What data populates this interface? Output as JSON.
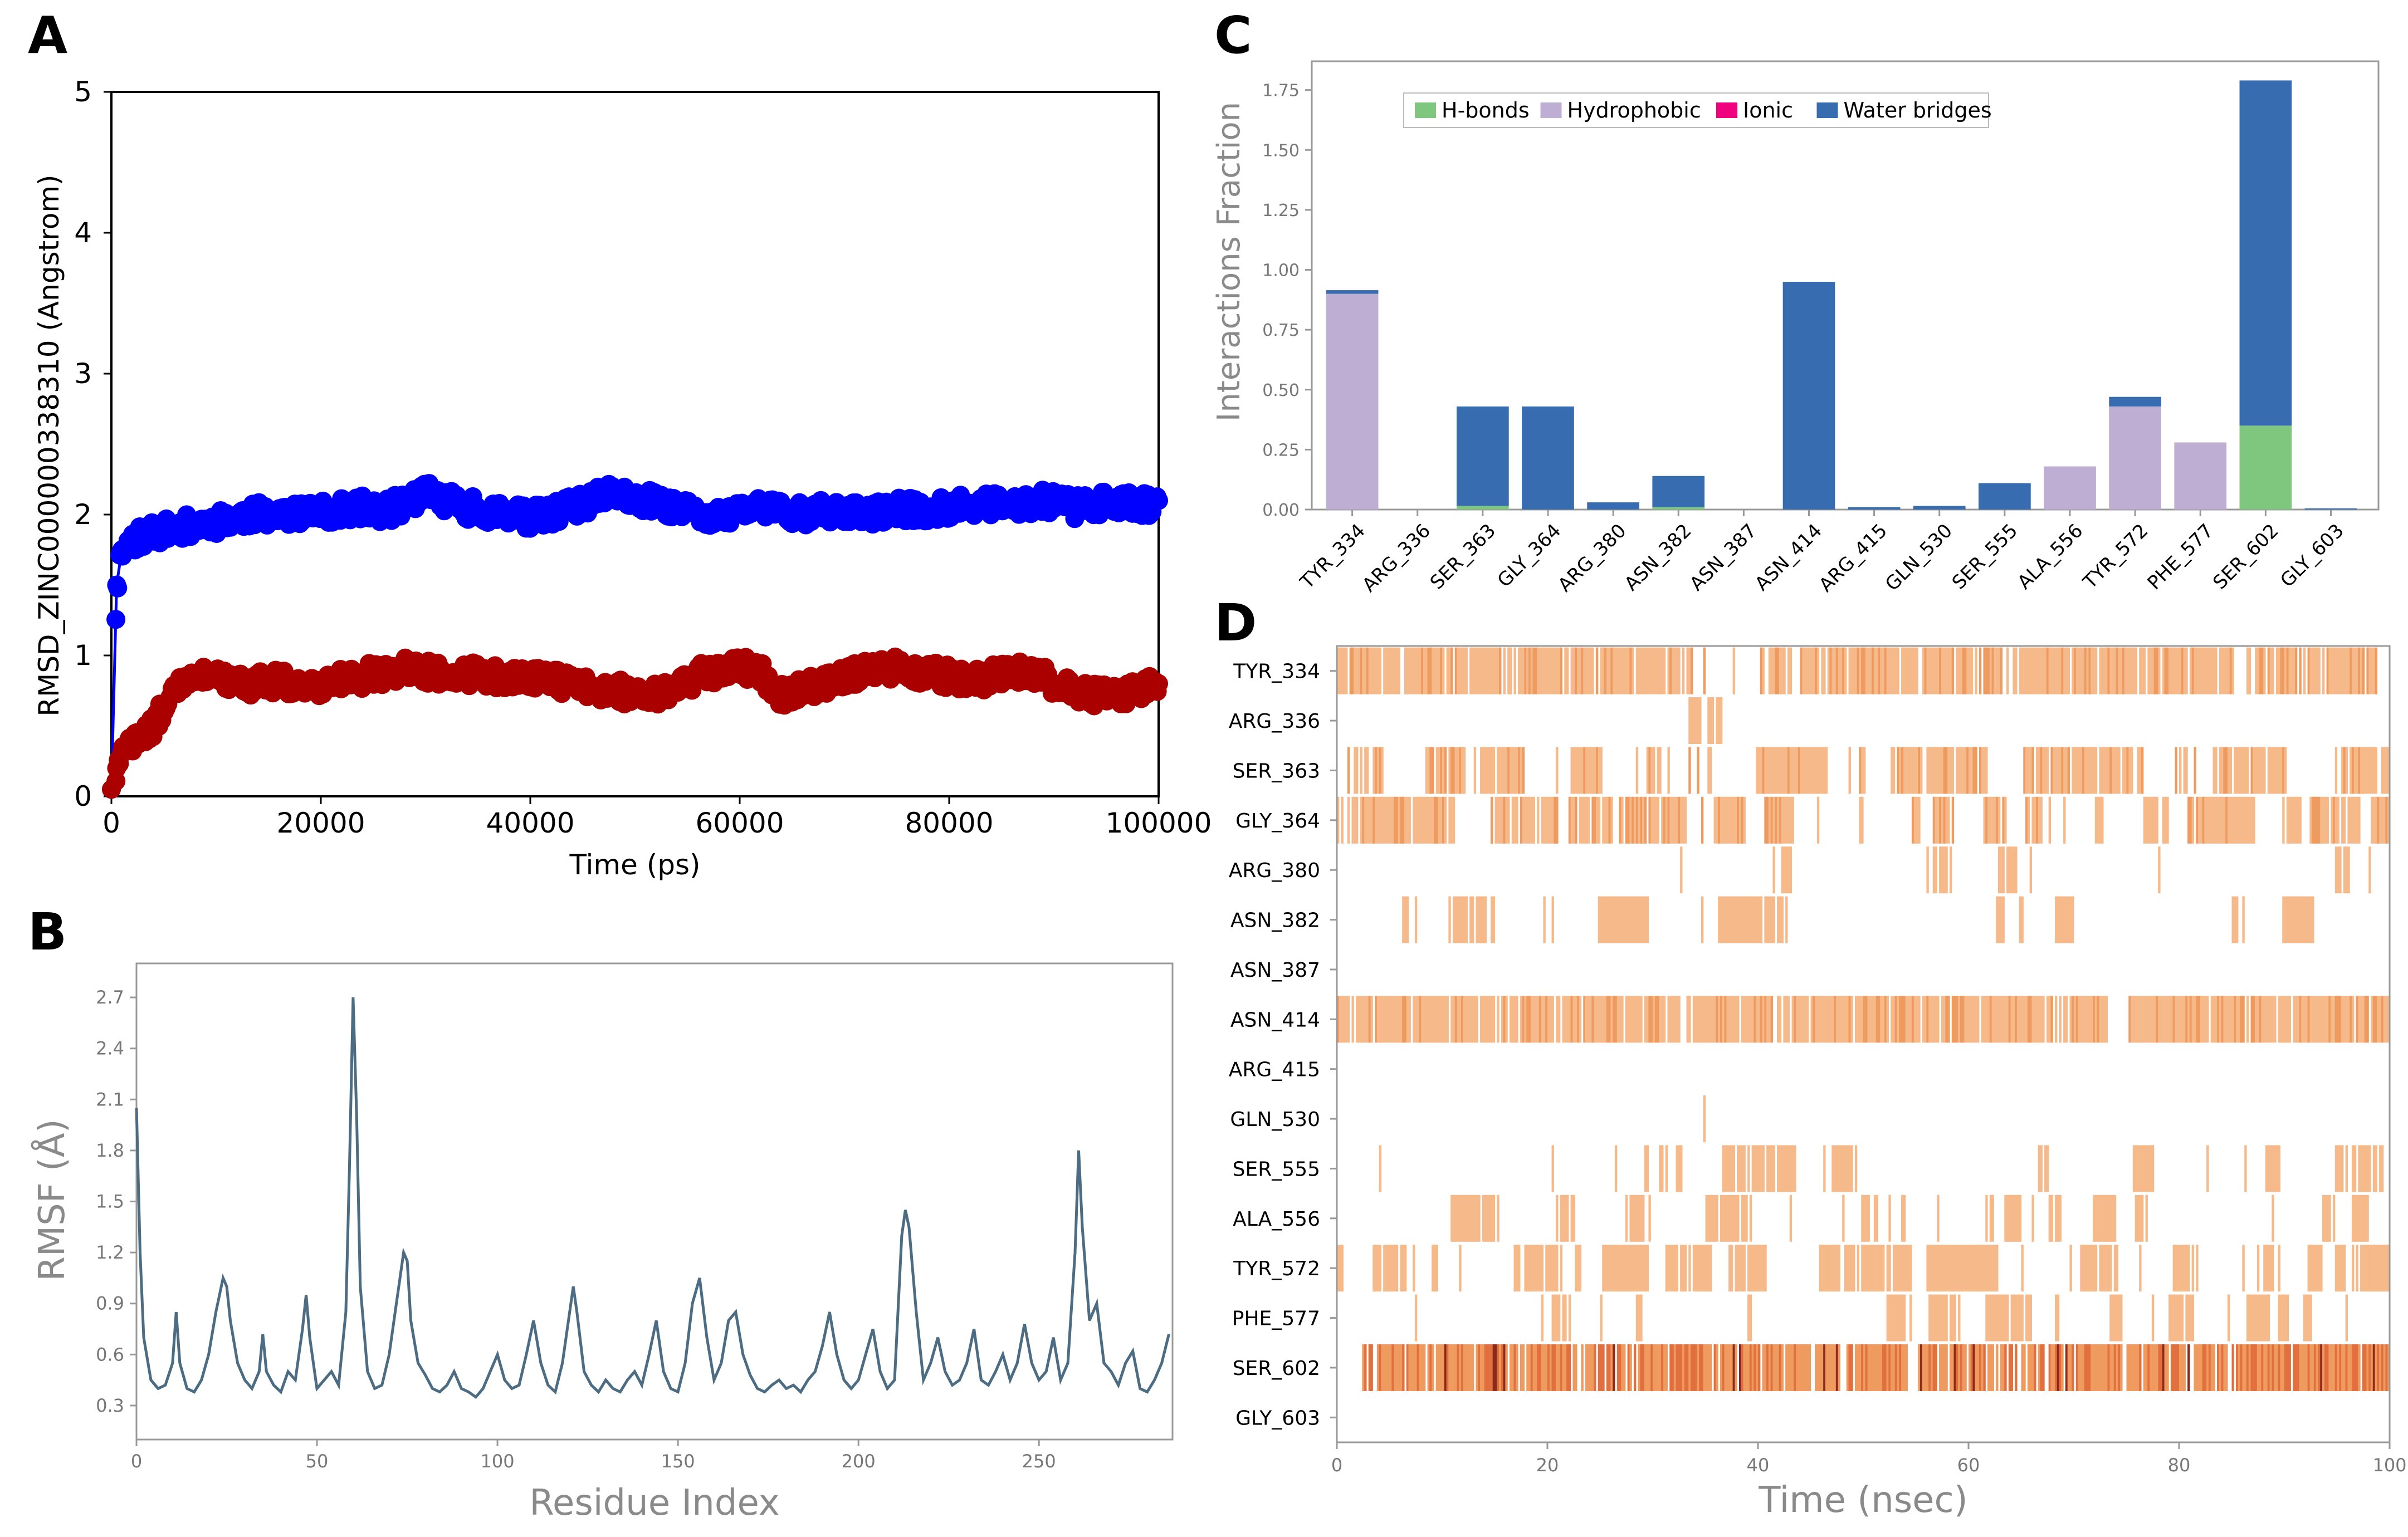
{
  "figure": {
    "letters": [
      "A",
      "B",
      "C",
      "D"
    ]
  },
  "chart_data": [
    {
      "panel": "A",
      "type": "scatter",
      "title": "",
      "xlabel": "Time (ps)",
      "ylabel": "RMSD_ZINC000000338310 (Angstrom)",
      "xlim": [
        0,
        100000
      ],
      "ylim": [
        0,
        5
      ],
      "xticks": [
        0,
        20000,
        40000,
        60000,
        80000,
        100000
      ],
      "yticks": [
        0,
        1,
        2,
        3,
        4,
        5
      ],
      "grid": false,
      "series": [
        {
          "name": "blue",
          "color": "#0000ff",
          "x": [
            0,
            500,
            1000,
            2000,
            3000,
            4000,
            5000,
            6000,
            8000,
            10000,
            12000,
            14000,
            16000,
            18000,
            20000,
            22000,
            24000,
            26000,
            28000,
            30000,
            32000,
            34000,
            36000,
            38000,
            40000,
            42000,
            44000,
            46000,
            48000,
            50000,
            52000,
            54000,
            56000,
            58000,
            60000,
            62000,
            64000,
            66000,
            68000,
            70000,
            72000,
            74000,
            76000,
            78000,
            80000,
            82000,
            84000,
            86000,
            88000,
            90000,
            92000,
            94000,
            96000,
            98000,
            100000
          ],
          "y": [
            0.05,
            1.5,
            1.75,
            1.82,
            1.85,
            1.87,
            1.88,
            1.9,
            1.93,
            1.95,
            1.98,
            2.0,
            2.02,
            2.0,
            2.01,
            2.03,
            2.05,
            2.02,
            2.08,
            2.15,
            2.1,
            2.05,
            2.02,
            2.0,
            1.98,
            2.0,
            2.05,
            2.1,
            2.15,
            2.12,
            2.08,
            2.05,
            2.0,
            1.98,
            2.02,
            2.05,
            2.03,
            2.0,
            2.02,
            2.03,
            2.0,
            2.02,
            2.04,
            2.02,
            2.05,
            2.08,
            2.07,
            2.05,
            2.08,
            2.1,
            2.05,
            2.08,
            2.1,
            2.05,
            2.1
          ]
        },
        {
          "name": "red",
          "color": "#aa0000",
          "x": [
            0,
            500,
            1000,
            2000,
            3000,
            4000,
            5000,
            6000,
            7000,
            8000,
            10000,
            12000,
            14000,
            16000,
            18000,
            20000,
            22000,
            24000,
            26000,
            28000,
            30000,
            32000,
            34000,
            36000,
            38000,
            40000,
            42000,
            44000,
            46000,
            48000,
            50000,
            52000,
            54000,
            56000,
            58000,
            60000,
            62000,
            64000,
            66000,
            68000,
            70000,
            72000,
            74000,
            76000,
            78000,
            80000,
            82000,
            84000,
            86000,
            88000,
            90000,
            92000,
            94000,
            96000,
            98000,
            100000
          ],
          "y": [
            0.05,
            0.2,
            0.3,
            0.35,
            0.4,
            0.5,
            0.65,
            0.78,
            0.85,
            0.85,
            0.83,
            0.78,
            0.8,
            0.82,
            0.8,
            0.78,
            0.83,
            0.85,
            0.88,
            0.9,
            0.88,
            0.85,
            0.87,
            0.85,
            0.83,
            0.85,
            0.82,
            0.8,
            0.78,
            0.75,
            0.73,
            0.72,
            0.75,
            0.85,
            0.9,
            0.92,
            0.88,
            0.72,
            0.75,
            0.8,
            0.85,
            0.9,
            0.92,
            0.9,
            0.88,
            0.85,
            0.82,
            0.85,
            0.9,
            0.88,
            0.8,
            0.75,
            0.72,
            0.7,
            0.75,
            0.8
          ]
        }
      ]
    },
    {
      "panel": "B",
      "type": "line",
      "title": "",
      "xlabel": "Residue Index",
      "ylabel": "RMSF (Å)",
      "xlim": [
        0,
        287
      ],
      "ylim": [
        0.1,
        2.9
      ],
      "xticks": [
        0,
        50,
        100,
        150,
        200,
        250
      ],
      "yticks": [
        0.3,
        0.6,
        0.9,
        1.2,
        1.5,
        1.8,
        2.1,
        2.4,
        2.7
      ],
      "color": "#4b6c82",
      "x": [
        0,
        1,
        2,
        4,
        6,
        8,
        10,
        11,
        12,
        14,
        16,
        18,
        20,
        22,
        24,
        25,
        26,
        28,
        30,
        32,
        34,
        35,
        36,
        38,
        40,
        42,
        44,
        46,
        47,
        48,
        50,
        52,
        54,
        56,
        58,
        59,
        60,
        61,
        62,
        64,
        66,
        68,
        70,
        72,
        74,
        75,
        76,
        78,
        80,
        82,
        84,
        86,
        88,
        90,
        92,
        94,
        96,
        98,
        100,
        102,
        104,
        106,
        108,
        110,
        112,
        114,
        116,
        118,
        120,
        121,
        122,
        124,
        126,
        128,
        130,
        132,
        134,
        136,
        138,
        140,
        142,
        144,
        146,
        148,
        150,
        152,
        154,
        156,
        158,
        160,
        162,
        164,
        166,
        168,
        170,
        172,
        174,
        176,
        178,
        180,
        182,
        184,
        186,
        188,
        190,
        192,
        194,
        196,
        198,
        200,
        202,
        204,
        206,
        208,
        210,
        212,
        213,
        214,
        216,
        218,
        220,
        222,
        224,
        226,
        228,
        230,
        232,
        234,
        236,
        238,
        240,
        242,
        244,
        246,
        248,
        250,
        252,
        254,
        256,
        258,
        260,
        261,
        262,
        264,
        266,
        268,
        270,
        272,
        274,
        276,
        278,
        280,
        282,
        284,
        286
      ],
      "y": [
        2.05,
        1.2,
        0.7,
        0.45,
        0.4,
        0.42,
        0.55,
        0.85,
        0.55,
        0.4,
        0.38,
        0.45,
        0.6,
        0.85,
        1.05,
        1.0,
        0.8,
        0.55,
        0.45,
        0.4,
        0.5,
        0.72,
        0.5,
        0.42,
        0.38,
        0.5,
        0.45,
        0.75,
        0.95,
        0.7,
        0.4,
        0.45,
        0.5,
        0.42,
        0.85,
        1.7,
        2.7,
        2.0,
        1.0,
        0.5,
        0.4,
        0.42,
        0.6,
        0.9,
        1.2,
        1.15,
        0.8,
        0.55,
        0.48,
        0.4,
        0.38,
        0.42,
        0.5,
        0.4,
        0.38,
        0.35,
        0.4,
        0.5,
        0.6,
        0.45,
        0.4,
        0.42,
        0.6,
        0.8,
        0.55,
        0.42,
        0.38,
        0.55,
        0.85,
        1.0,
        0.85,
        0.5,
        0.42,
        0.38,
        0.45,
        0.4,
        0.38,
        0.45,
        0.5,
        0.42,
        0.6,
        0.8,
        0.5,
        0.4,
        0.38,
        0.55,
        0.9,
        1.05,
        0.7,
        0.45,
        0.55,
        0.8,
        0.85,
        0.6,
        0.48,
        0.4,
        0.38,
        0.42,
        0.45,
        0.4,
        0.42,
        0.38,
        0.45,
        0.5,
        0.65,
        0.85,
        0.6,
        0.45,
        0.4,
        0.45,
        0.6,
        0.75,
        0.5,
        0.4,
        0.45,
        1.3,
        1.45,
        1.35,
        0.85,
        0.45,
        0.55,
        0.7,
        0.5,
        0.42,
        0.45,
        0.55,
        0.75,
        0.45,
        0.42,
        0.5,
        0.6,
        0.45,
        0.55,
        0.78,
        0.55,
        0.45,
        0.5,
        0.7,
        0.45,
        0.55,
        1.2,
        1.8,
        1.35,
        0.8,
        0.9,
        0.55,
        0.5,
        0.42,
        0.55,
        0.62,
        0.4,
        0.38,
        0.45,
        0.55,
        0.72
      ]
    },
    {
      "panel": "C",
      "type": "bar",
      "stacked": true,
      "title": "",
      "xlabel": "",
      "ylabel": "Interactions Fraction",
      "ylim": [
        0,
        1.87
      ],
      "yticks": [
        0.0,
        0.25,
        0.5,
        0.75,
        1.0,
        1.25,
        1.5,
        1.75
      ],
      "ytick_labels": [
        "0.00",
        "0.25",
        "0.50",
        "0.75",
        "1.00",
        "1.25",
        "1.50",
        "1.75"
      ],
      "legend_position": "top-left",
      "categories": [
        "TYR_334",
        "ARG_336",
        "SER_363",
        "GLY_364",
        "ARG_380",
        "ASN_382",
        "ASN_387",
        "ASN_414",
        "ARG_415",
        "GLN_530",
        "SER_555",
        "ALA_556",
        "TYR_572",
        "PHE_577",
        "SER_602",
        "GLY_603"
      ],
      "series": [
        {
          "name": "H-bonds",
          "color": "#7fc77f",
          "values": [
            0,
            0,
            0.015,
            0,
            0,
            0.01,
            0,
            0,
            0,
            0,
            0,
            0,
            0,
            0,
            0.35,
            0
          ]
        },
        {
          "name": "Hydrophobic",
          "color": "#beaed4",
          "values": [
            0.9,
            0,
            0,
            0,
            0,
            0,
            0,
            0,
            0,
            0,
            0,
            0.18,
            0.43,
            0.28,
            0,
            0
          ]
        },
        {
          "name": "Ionic",
          "color": "#f0027f",
          "values": [
            0,
            0,
            0,
            0,
            0,
            0,
            0,
            0,
            0,
            0,
            0,
            0,
            0,
            0,
            0,
            0
          ]
        },
        {
          "name": "Water bridges",
          "color": "#386cb0",
          "values": [
            0.015,
            0,
            0.415,
            0.43,
            0.03,
            0.13,
            0,
            0.95,
            0.01,
            0.015,
            0.11,
            0,
            0.04,
            0,
            1.44,
            0.005
          ]
        }
      ]
    },
    {
      "panel": "D",
      "type": "heatmap",
      "title": "",
      "xlabel": "Time (nsec)",
      "ylabel": "",
      "xlim": [
        0,
        100
      ],
      "xticks": [
        0,
        20,
        40,
        60,
        80,
        100
      ],
      "categories": [
        "TYR_334",
        "ARG_336",
        "SER_363",
        "GLY_364",
        "ARG_380",
        "ASN_382",
        "ASN_387",
        "ASN_414",
        "ARG_415",
        "GLN_530",
        "SER_555",
        "ALA_556",
        "TYR_572",
        "PHE_577",
        "SER_602",
        "GLY_603"
      ],
      "occupancy": [
        0.85,
        0.01,
        0.55,
        0.55,
        0.1,
        0.18,
        0.0,
        0.9,
        0.02,
        0.03,
        0.2,
        0.3,
        0.5,
        0.25,
        0.97,
        0.01
      ],
      "colors": {
        "light": "#f6b98a",
        "medium": "#ef9a5e",
        "dark": "#e2703f",
        "darkest": "#8b2a1a"
      }
    }
  ]
}
